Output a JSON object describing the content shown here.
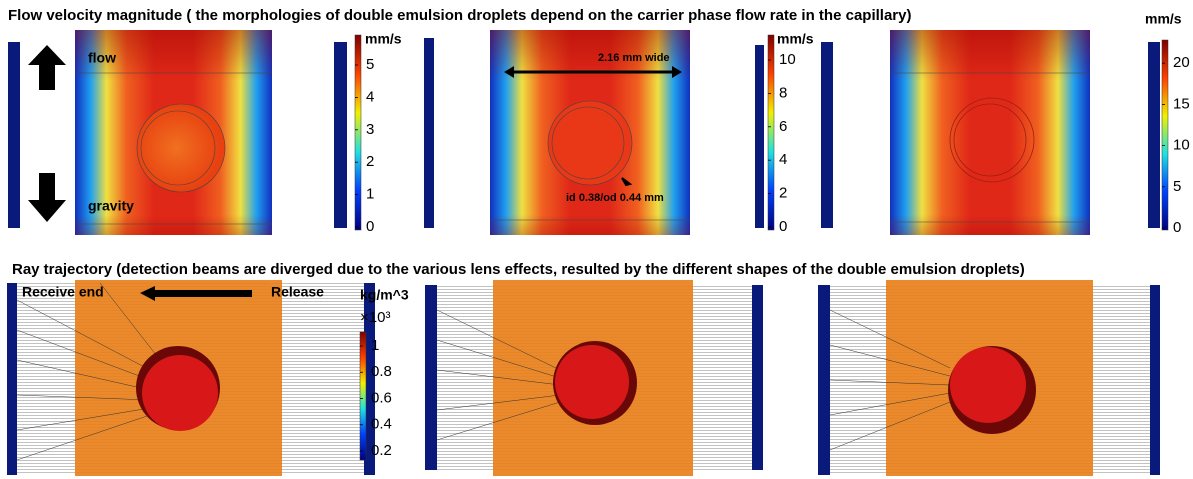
{
  "flow": {
    "title": "Flow velocity magnitude ( the morphologies of double emulsion droplets depend on the carrier  phase flow rate in the capillary)",
    "annotations": {
      "flow": "flow",
      "gravity": "gravity",
      "width": "2.16 mm wide",
      "diameter": "id 0.38/od 0.44 mm"
    },
    "colorbars": [
      {
        "unit": "mm/s",
        "ticks": [
          0,
          1,
          2,
          3,
          4,
          5
        ]
      },
      {
        "unit": "mm/s",
        "ticks": [
          0,
          2,
          4,
          6,
          8,
          10
        ]
      },
      {
        "unit": "mm/s",
        "ticks": [
          0,
          5,
          10,
          15,
          20
        ]
      }
    ]
  },
  "rays": {
    "title": "Ray trajectory (detection beams are diverged due to the various lens effects, resulted by the different shapes of the double emulsion droplets)",
    "annotations": {
      "receive": "Receive end",
      "release": "Release"
    },
    "colorbar": {
      "unit": "kg/m^3",
      "scale": "×10³",
      "ticks": [
        0.2,
        0.4,
        0.6,
        0.8,
        1
      ]
    }
  }
}
